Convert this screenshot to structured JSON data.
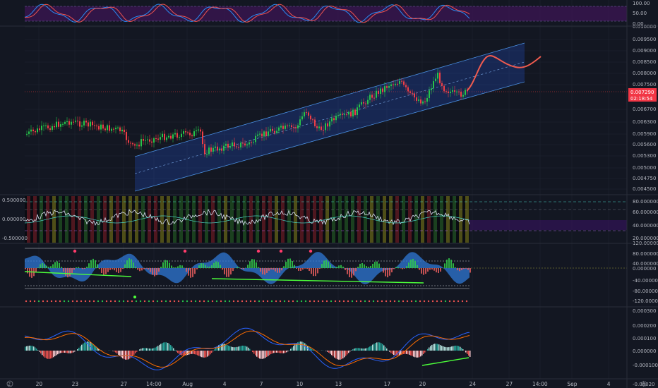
{
  "colors": {
    "background": "#131722",
    "grid": "#1f2430",
    "separator": "#2a2e39",
    "up_candle": "#26c44a",
    "down_candle": "#ef3e46",
    "channel_fill": "#2962ff",
    "channel_line": "#4a8fe0",
    "projection": "#ef5b4f",
    "price_line": "#ff3b3b",
    "stoch_k": "#2a8cf5",
    "stoch_d": "#ef5350",
    "stoch_band": "#6a1b9a",
    "macd_line": "#2962ff",
    "signal_line": "#ff6d00",
    "divergence": "#4cff3a",
    "rsi_line": "#d9e1f2"
  },
  "panes": {
    "stoch_rsi": {
      "axis_labels": [
        "100.00",
        "50.00",
        "0.00"
      ]
    },
    "price": {
      "axis_labels": [
        "0.010000",
        "0.009500",
        "0.009000",
        "0.008500",
        "0.008000",
        "0.007500",
        "0.006700",
        "0.006300",
        "0.005900",
        "0.005600",
        "0.005300",
        "0.005000",
        "0.004750",
        "0.004500"
      ],
      "last_price_tag": "0.007290",
      "countdown_tag": "02:18:54"
    },
    "oscillator": {
      "left_labels": [
        "0.500000",
        "0.000000",
        "-0.500000"
      ],
      "right_labels": [
        "80.000000",
        "60.000000",
        "40.000000",
        "20.000000"
      ]
    },
    "wave_trend": {
      "axis_labels": [
        "120.000000",
        "80.000000",
        "40.000000",
        "0.000000",
        "-40.000000",
        "-80.000000",
        "-120.000000"
      ]
    },
    "macd": {
      "axis_labels": [
        "0.000300",
        "0.000200",
        "0.000100",
        "0.000000",
        "-0.000100"
      ],
      "bottom_label": "-0.00020"
    }
  },
  "time_axis": {
    "labels": [
      "20",
      "23",
      "27",
      "14:00",
      "Aug",
      "4",
      "7",
      "10",
      "13",
      "17",
      "20",
      "24",
      "27",
      "14:00",
      "Sep",
      "4"
    ]
  },
  "corner": {
    "left_icon": "Z",
    "right_icon": "gear-icon"
  }
}
